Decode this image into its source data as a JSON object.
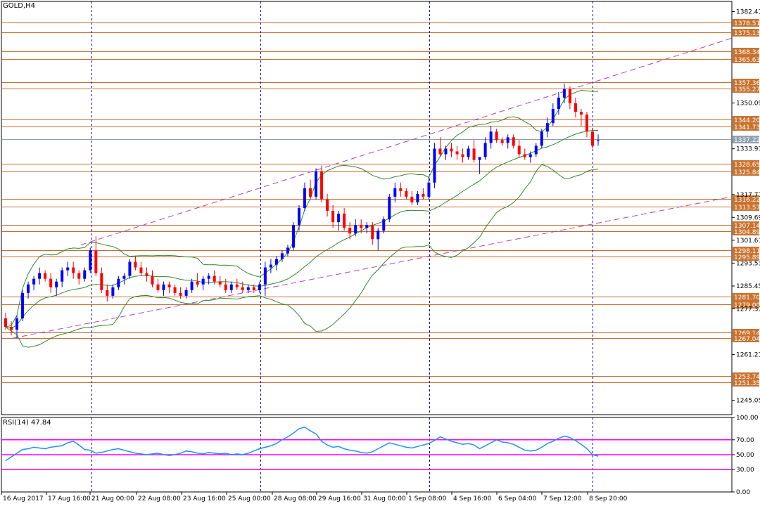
{
  "chart_title": "GOLD,H4",
  "rsi_title": "RSI(14) 47.84",
  "colors": {
    "up_candle": "#0000ff",
    "down_candle": "#ff0000",
    "level_line": "#cc6a2b",
    "level_label_bg": "#c9732f",
    "current_label_bg": "#8fa0b0",
    "bollinger": "#2e8b2e",
    "channel": "#b040c0",
    "rsi_line": "#1e90ff",
    "rsi_levels": "#ff00ff",
    "separator": "#0000cc"
  },
  "chart_data": {
    "type": "candlestick",
    "symbol": "GOLD",
    "timeframe": "H4",
    "ylim": [
      1240,
      1386
    ],
    "y_ticks": [
      1382.41,
      1350.09,
      1333.93,
      1317.77,
      1309.69,
      1301.61,
      1293.53,
      1285.45,
      1277.37,
      1261.21,
      1245.05
    ],
    "x_ticks": [
      "16 Aug 2017",
      "17 Aug 16:00",
      "21 Aug 00:00",
      "22 Aug 08:00",
      "23 Aug 16:00",
      "25 Aug 00:00",
      "28 Aug 08:00",
      "29 Aug 16:00",
      "31 Aug 00:00",
      "1 Sep 08:00",
      "4 Sep 16:00",
      "6 Sep 04:00",
      "7 Sep 12:00",
      "8 Sep 20:00"
    ],
    "levels": [
      {
        "label": "1378.51",
        "value": 1378.51
      },
      {
        "label": "1375.13",
        "value": 1375.13
      },
      {
        "label": "1368.34",
        "value": 1368.34
      },
      {
        "label": "1365.63",
        "value": 1365.63
      },
      {
        "label": "1357.36",
        "value": 1357.36
      },
      {
        "label": "1355.27",
        "value": 1355.27
      },
      {
        "label": "1344.20",
        "value": 1344.2
      },
      {
        "label": "1341.73",
        "value": 1341.73
      },
      {
        "label": "1328.65",
        "value": 1328.65
      },
      {
        "label": "1325.84",
        "value": 1325.84
      },
      {
        "label": "1316.22",
        "value": 1316.22
      },
      {
        "label": "1313.57",
        "value": 1313.57
      },
      {
        "label": "1307.14",
        "value": 1307.14
      },
      {
        "label": "1304.89",
        "value": 1304.89
      },
      {
        "label": "1298.11",
        "value": 1298.11
      },
      {
        "label": "1295.89",
        "value": 1295.89
      },
      {
        "label": "1281.70",
        "value": 1281.7
      },
      {
        "label": "1279.00",
        "value": 1279.0
      },
      {
        "label": "1269.14",
        "value": 1269.14
      },
      {
        "label": "1267.04",
        "value": 1267.04
      },
      {
        "label": "1253.74",
        "value": 1253.74
      },
      {
        "label": "1251.35",
        "value": 1251.35
      }
    ],
    "current_price": {
      "label": "1337.22",
      "value": 1337.22
    },
    "candles": [
      [
        1274,
        1276,
        1270,
        1271
      ],
      [
        1271,
        1273,
        1268,
        1270
      ],
      [
        1270,
        1275,
        1267,
        1274
      ],
      [
        1274,
        1284,
        1273,
        1283
      ],
      [
        1283,
        1287,
        1281,
        1286
      ],
      [
        1286,
        1289,
        1284,
        1288
      ],
      [
        1288,
        1292,
        1286,
        1290
      ],
      [
        1290,
        1291,
        1287,
        1288
      ],
      [
        1288,
        1290,
        1283,
        1285
      ],
      [
        1285,
        1288,
        1282,
        1287
      ],
      [
        1287,
        1292,
        1285,
        1291
      ],
      [
        1291,
        1294,
        1289,
        1292
      ],
      [
        1292,
        1294,
        1288,
        1290
      ],
      [
        1290,
        1291,
        1286,
        1288
      ],
      [
        1288,
        1292,
        1287,
        1291
      ],
      [
        1291,
        1299,
        1290,
        1298
      ],
      [
        1298,
        1303,
        1289,
        1290
      ],
      [
        1290,
        1292,
        1283,
        1284
      ],
      [
        1284,
        1286,
        1280,
        1282
      ],
      [
        1282,
        1286,
        1281,
        1285
      ],
      [
        1285,
        1289,
        1284,
        1288
      ],
      [
        1288,
        1290,
        1286,
        1289
      ],
      [
        1289,
        1295,
        1288,
        1294
      ],
      [
        1294,
        1296,
        1291,
        1292
      ],
      [
        1292,
        1294,
        1289,
        1290
      ],
      [
        1290,
        1292,
        1287,
        1289
      ],
      [
        1289,
        1291,
        1285,
        1286
      ],
      [
        1286,
        1288,
        1283,
        1284
      ],
      [
        1284,
        1287,
        1282,
        1286
      ],
      [
        1286,
        1287,
        1283,
        1285
      ],
      [
        1285,
        1286,
        1282,
        1283
      ],
      [
        1283,
        1285,
        1281,
        1282
      ],
      [
        1282,
        1285,
        1281,
        1284
      ],
      [
        1284,
        1288,
        1283,
        1287
      ],
      [
        1287,
        1290,
        1285,
        1286
      ],
      [
        1286,
        1289,
        1284,
        1288
      ],
      [
        1288,
        1290,
        1286,
        1289
      ],
      [
        1289,
        1291,
        1286,
        1287
      ],
      [
        1287,
        1289,
        1285,
        1286
      ],
      [
        1286,
        1288,
        1283,
        1284
      ],
      [
        1284,
        1287,
        1283,
        1286
      ],
      [
        1286,
        1288,
        1284,
        1285
      ],
      [
        1285,
        1287,
        1283,
        1284
      ],
      [
        1284,
        1286,
        1283,
        1285
      ],
      [
        1285,
        1286,
        1283,
        1284
      ],
      [
        1284,
        1287,
        1283,
        1286
      ],
      [
        1286,
        1294,
        1282,
        1292
      ],
      [
        1292,
        1295,
        1290,
        1293
      ],
      [
        1293,
        1296,
        1291,
        1295
      ],
      [
        1295,
        1298,
        1294,
        1297
      ],
      [
        1297,
        1300,
        1296,
        1299
      ],
      [
        1299,
        1308,
        1298,
        1307
      ],
      [
        1307,
        1314,
        1305,
        1313
      ],
      [
        1313,
        1322,
        1312,
        1320
      ],
      [
        1320,
        1323,
        1316,
        1317
      ],
      [
        1317,
        1327,
        1316,
        1326
      ],
      [
        1326,
        1328,
        1315,
        1316
      ],
      [
        1316,
        1318,
        1310,
        1312
      ],
      [
        1312,
        1314,
        1306,
        1308
      ],
      [
        1308,
        1312,
        1305,
        1311
      ],
      [
        1311,
        1313,
        1305,
        1306
      ],
      [
        1306,
        1308,
        1302,
        1304
      ],
      [
        1304,
        1309,
        1303,
        1307
      ],
      [
        1307,
        1309,
        1304,
        1306
      ],
      [
        1306,
        1308,
        1304,
        1307
      ],
      [
        1307,
        1308,
        1300,
        1302
      ],
      [
        1302,
        1306,
        1298,
        1305
      ],
      [
        1305,
        1310,
        1304,
        1309
      ],
      [
        1309,
        1318,
        1308,
        1317
      ],
      [
        1317,
        1322,
        1315,
        1320
      ],
      [
        1320,
        1322,
        1317,
        1319
      ],
      [
        1319,
        1320,
        1316,
        1317
      ],
      [
        1317,
        1319,
        1314,
        1315
      ],
      [
        1315,
        1319,
        1314,
        1318
      ],
      [
        1318,
        1320,
        1316,
        1317
      ],
      [
        1317,
        1324,
        1316,
        1322
      ],
      [
        1322,
        1336,
        1320,
        1334
      ],
      [
        1334,
        1338,
        1331,
        1332
      ],
      [
        1332,
        1335,
        1330,
        1334
      ],
      [
        1334,
        1336,
        1331,
        1333
      ],
      [
        1333,
        1335,
        1330,
        1332
      ],
      [
        1332,
        1334,
        1329,
        1331
      ],
      [
        1331,
        1335,
        1330,
        1334
      ],
      [
        1334,
        1337,
        1329,
        1330
      ],
      [
        1330,
        1331,
        1325,
        1331
      ],
      [
        1331,
        1338,
        1330,
        1336
      ],
      [
        1336,
        1342,
        1334,
        1340
      ],
      [
        1340,
        1341,
        1336,
        1337
      ],
      [
        1337,
        1338,
        1335,
        1336
      ],
      [
        1336,
        1339,
        1334,
        1338
      ],
      [
        1338,
        1339,
        1334,
        1335
      ],
      [
        1335,
        1337,
        1331,
        1332
      ],
      [
        1332,
        1334,
        1330,
        1331
      ],
      [
        1331,
        1333,
        1329,
        1332
      ],
      [
        1332,
        1336,
        1331,
        1335
      ],
      [
        1335,
        1341,
        1334,
        1340
      ],
      [
        1340,
        1345,
        1338,
        1343
      ],
      [
        1343,
        1350,
        1342,
        1348
      ],
      [
        1348,
        1354,
        1346,
        1352
      ],
      [
        1352,
        1357,
        1350,
        1355
      ],
      [
        1355,
        1356,
        1348,
        1350
      ],
      [
        1350,
        1352,
        1345,
        1347
      ],
      [
        1347,
        1348,
        1342,
        1346
      ],
      [
        1346,
        1347,
        1338,
        1340
      ],
      [
        1340,
        1341,
        1334,
        1335
      ],
      [
        1337,
        1339,
        1335,
        1337
      ]
    ]
  },
  "rsi": {
    "name": "RSI(14)",
    "value": "47.84",
    "ylim": [
      0,
      100
    ],
    "ticks": [
      "100.00",
      "70.00",
      "50.00",
      "30.00",
      "0.00"
    ],
    "levels": [
      70,
      50,
      30
    ],
    "values": [
      42,
      47,
      52,
      57,
      58,
      60,
      59,
      58,
      60,
      61,
      62,
      66,
      68,
      63,
      57,
      56,
      52,
      53,
      55,
      57,
      58,
      56,
      54,
      52,
      51,
      50,
      51,
      52,
      50,
      49,
      50,
      52,
      55,
      54,
      52,
      51,
      53,
      52,
      51,
      52,
      50,
      51,
      50,
      52,
      55,
      58,
      60,
      62,
      65,
      70,
      74,
      79,
      85,
      87,
      82,
      78,
      68,
      63,
      60,
      61,
      58,
      56,
      55,
      53,
      52,
      54,
      58,
      62,
      66,
      64,
      62,
      60,
      59,
      61,
      63,
      65,
      69,
      74,
      71,
      68,
      66,
      64,
      65,
      63,
      58,
      62,
      66,
      70,
      67,
      66,
      64,
      60,
      56,
      55,
      56,
      60,
      65,
      68,
      72,
      75,
      73,
      69,
      64,
      58,
      50,
      48
    ]
  }
}
